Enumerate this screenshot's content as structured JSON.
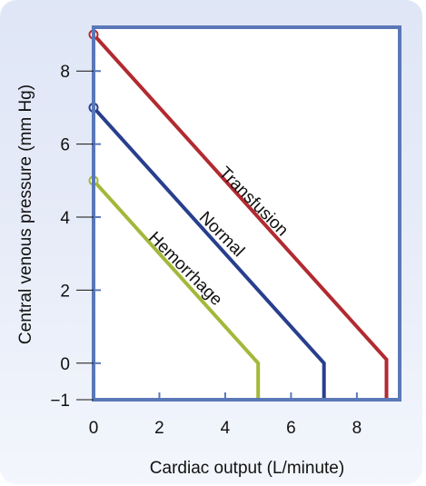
{
  "chart_data": {
    "type": "line",
    "xlabel": "Cardiac output (L/minute)",
    "ylabel": "Central venous pressure (mm Hg)",
    "xlim": [
      0,
      9.3
    ],
    "ylim": [
      -1,
      9.2
    ],
    "xticks": [
      0,
      2,
      4,
      6,
      8
    ],
    "yticks": [
      -1,
      0,
      2,
      4,
      6,
      8
    ],
    "grid": false,
    "colors": {
      "frame": "#5a78b8",
      "Transfusion": "#b22a31",
      "Normal": "#283f8e",
      "Hemorrhage": "#a3b83a"
    },
    "series": [
      {
        "name": "Transfusion",
        "x": [
          0,
          8.9,
          8.9
        ],
        "y": [
          9,
          0.1,
          -1
        ]
      },
      {
        "name": "Normal",
        "x": [
          0,
          7,
          7
        ],
        "y": [
          7,
          0,
          -1
        ]
      },
      {
        "name": "Hemorrhage",
        "x": [
          0,
          5,
          5
        ],
        "y": [
          5,
          0,
          -1
        ]
      }
    ]
  }
}
